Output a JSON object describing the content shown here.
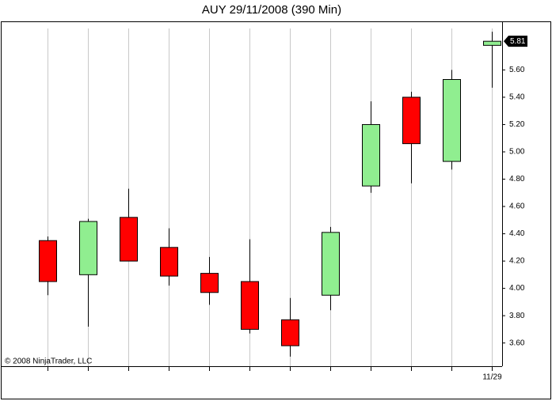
{
  "chart_data": {
    "type": "candlestick",
    "title": "AUY  29/11/2008 (390 Min)",
    "credit": "© 2008 NinjaTrader, LLC",
    "categories": [
      null,
      null,
      null,
      null,
      null,
      null,
      null,
      null,
      null,
      null,
      null,
      "11/29"
    ],
    "open": [
      4.35,
      4.1,
      4.52,
      4.3,
      4.11,
      4.05,
      3.77,
      3.95,
      4.75,
      5.4,
      4.93,
      5.78
    ],
    "high": [
      4.38,
      4.51,
      4.73,
      4.44,
      4.23,
      4.36,
      3.93,
      4.45,
      5.37,
      5.44,
      5.6,
      5.88
    ],
    "low": [
      3.95,
      3.72,
      4.2,
      4.02,
      3.88,
      3.67,
      3.5,
      3.84,
      4.7,
      4.77,
      4.87,
      5.47
    ],
    "close": [
      4.05,
      4.49,
      4.2,
      4.09,
      3.97,
      3.7,
      3.58,
      4.41,
      5.2,
      5.06,
      5.53,
      5.81
    ],
    "up_color": "#90ee90",
    "down_color": "#ff0000",
    "ylim": [
      3.43,
      5.95
    ],
    "yticks": [
      {
        "value": 3.6,
        "label": "3.60"
      },
      {
        "value": 3.8,
        "label": "3.80"
      },
      {
        "value": 4.0,
        "label": "4.00"
      },
      {
        "value": 4.2,
        "label": "4.20"
      },
      {
        "value": 4.4,
        "label": "4.40"
      },
      {
        "value": 4.6,
        "label": "4.60"
      },
      {
        "value": 4.8,
        "label": "4.80"
      },
      {
        "value": 5.0,
        "label": "5.00"
      },
      {
        "value": 5.2,
        "label": "5.20"
      },
      {
        "value": 5.4,
        "label": "5.40"
      },
      {
        "value": 5.6,
        "label": "5.60"
      }
    ],
    "grid": "x"
  }
}
